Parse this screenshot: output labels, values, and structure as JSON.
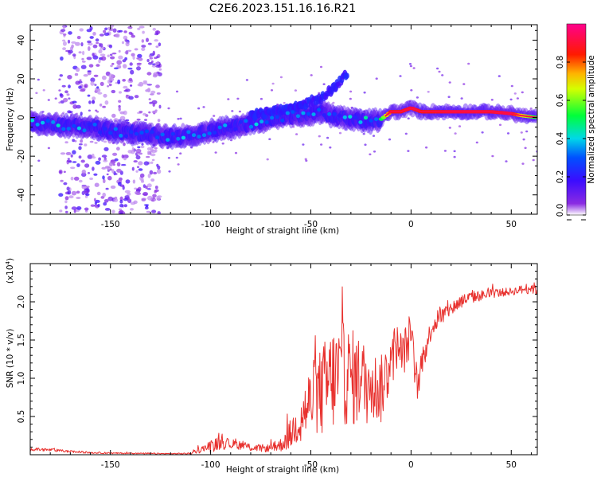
{
  "title": "C2E6.2023.151.16.16.R21",
  "chart_data": [
    {
      "type": "heatmap",
      "title": "C2E6.2023.151.16.16.R21",
      "xlabel": "Height of straight line (km)",
      "ylabel": "Frequency (Hz)",
      "xlim": [
        -190,
        63
      ],
      "ylim": [
        -50,
        48
      ],
      "x_ticks": [
        -150,
        -100,
        -50,
        0,
        50
      ],
      "x_tick_labels": [
        "-150",
        "-100",
        "-50",
        "0",
        "50"
      ],
      "y_ticks": [
        -40,
        -20,
        0,
        20,
        40
      ],
      "y_tick_labels": [
        "-40",
        "-20",
        "0",
        "20",
        "40"
      ],
      "colorbar": {
        "label": "Normalized spectral amplitude",
        "ticks": [
          0.0,
          0.2,
          0.4,
          0.6,
          0.8
        ],
        "tick_labels": [
          "0.0",
          "0.2",
          "0.4",
          "0.6",
          "0.8"
        ],
        "colormap": "rainbow (white-violet-blue-cyan-green-yellow-red-magenta)"
      },
      "ridge_frequency": {
        "x": [
          -190,
          -175,
          -160,
          -150,
          -140,
          -130,
          -120,
          -110,
          -100,
          -90,
          -80,
          -70,
          -60,
          -50,
          -45,
          -40,
          -30,
          -20,
          -15,
          -10,
          -5,
          0,
          5,
          10,
          20,
          30,
          40,
          50,
          55,
          63
        ],
        "y": [
          -3,
          -4,
          -5,
          -7,
          -8,
          -9,
          -10,
          -9,
          -7,
          -5,
          -3,
          -1,
          1,
          2,
          3,
          1,
          -1,
          -2,
          -1,
          3,
          3,
          5,
          3,
          3,
          3,
          3,
          3,
          2,
          1,
          0
        ],
        "amplitude": [
          0.35,
          0.4,
          0.35,
          0.3,
          0.3,
          0.3,
          0.35,
          0.35,
          0.35,
          0.3,
          0.35,
          0.35,
          0.3,
          0.35,
          0.3,
          0.3,
          0.35,
          0.4,
          0.5,
          0.85,
          0.85,
          0.9,
          0.85,
          0.85,
          0.9,
          0.9,
          0.88,
          0.92,
          0.7,
          0.5
        ]
      },
      "upper_branch": {
        "x": [
          -80,
          -70,
          -60,
          -50,
          -45,
          -40,
          -35,
          -32
        ],
        "y": [
          1,
          3,
          5,
          8,
          10,
          14,
          19,
          23
        ]
      },
      "scatter_band_x": [
        -175,
        -125
      ]
    },
    {
      "type": "line",
      "xlabel": "Height of straight line (km)",
      "ylabel": "SNR (10 * v/v)",
      "y_multiplier_label": "(x10",
      "y_multiplier_exp": "4",
      "y_multiplier_close": ")",
      "xlim": [
        -190,
        63
      ],
      "ylim": [
        0,
        25000
      ],
      "x_ticks": [
        -150,
        -100,
        -50,
        0,
        50
      ],
      "x_tick_labels": [
        "-150",
        "-100",
        "-50",
        "0",
        "50"
      ],
      "y_ticks": [
        5000,
        10000,
        15000,
        20000
      ],
      "y_tick_labels": [
        "0.5",
        "1.0",
        "1.5",
        "2.0"
      ],
      "series": [
        {
          "color": "#e8312e",
          "x": [
            -190,
            -180,
            -170,
            -160,
            -150,
            -140,
            -130,
            -120,
            -110,
            -105,
            -100,
            -95,
            -90,
            -85,
            -80,
            -75,
            -70,
            -65,
            -60,
            -55,
            -50,
            -45,
            -40,
            -35,
            -30,
            -25,
            -20,
            -15,
            -10,
            -7,
            -5,
            -2,
            0,
            2,
            4,
            5,
            8,
            10,
            15,
            20,
            25,
            30,
            40,
            50,
            55,
            60,
            63
          ],
          "y": [
            700,
            600,
            400,
            250,
            200,
            180,
            150,
            120,
            150,
            600,
            1000,
            1500,
            1300,
            1200,
            900,
            800,
            800,
            1200,
            2500,
            4500,
            6500,
            7500,
            9000,
            10000,
            9500,
            9000,
            8500,
            8000,
            12000,
            14000,
            12500,
            14000,
            16000,
            10000,
            8000,
            12000,
            14000,
            16500,
            18000,
            19000,
            20000,
            20500,
            21000,
            21300,
            21500,
            21800,
            21500
          ],
          "noise": [
            200,
            200,
            150,
            100,
            80,
            80,
            80,
            80,
            100,
            400,
            800,
            900,
            700,
            600,
            500,
            500,
            500,
            900,
            2000,
            3000,
            5000,
            6000,
            7000,
            7000,
            6500,
            6000,
            5000,
            4500,
            4000,
            3000,
            3000,
            3000,
            3000,
            2000,
            2000,
            2000,
            1500,
            1500,
            1200,
            1000,
            900,
            800,
            600,
            500,
            600,
            800,
            800
          ]
        }
      ]
    }
  ]
}
